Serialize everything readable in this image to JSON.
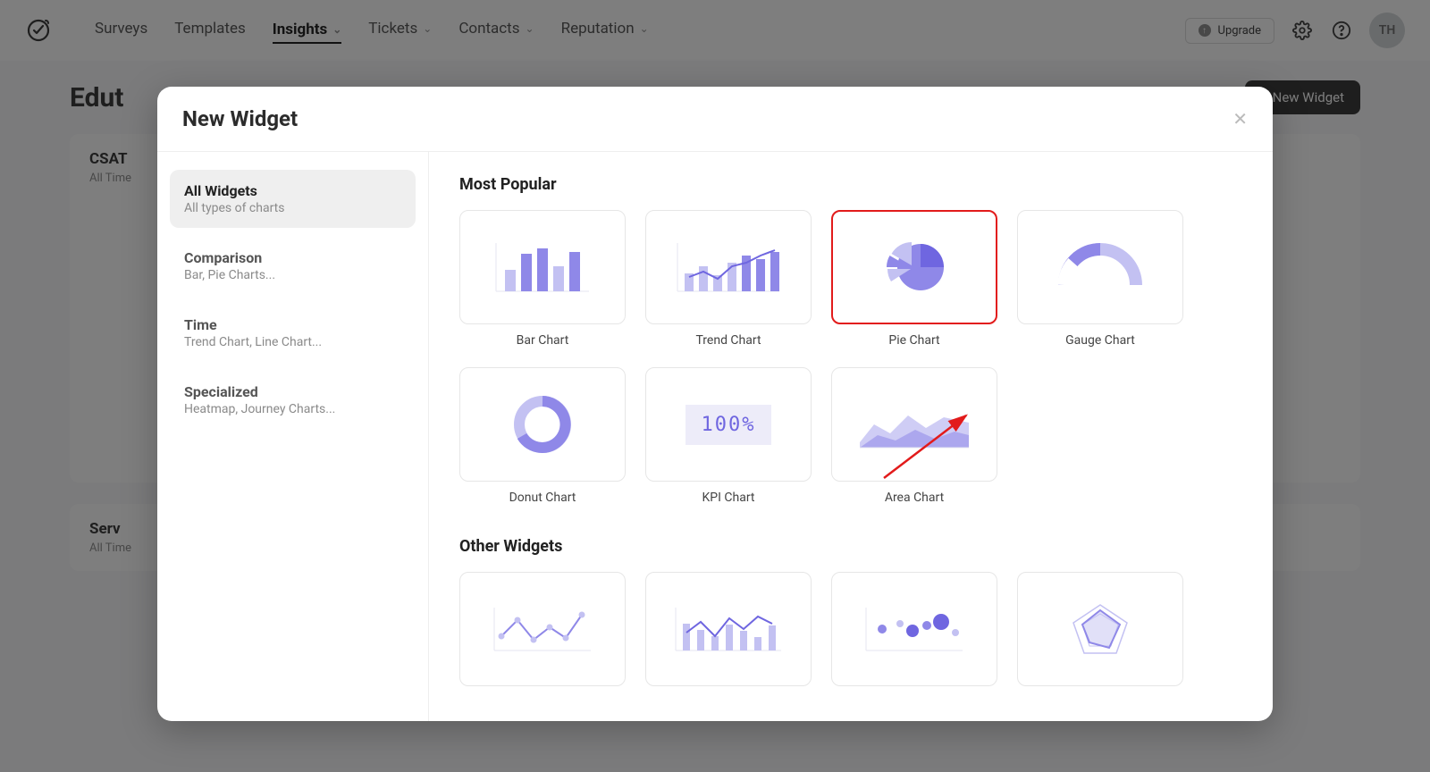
{
  "nav": {
    "items": [
      {
        "label": "Surveys",
        "dropdown": false,
        "active": false
      },
      {
        "label": "Templates",
        "dropdown": false,
        "active": false
      },
      {
        "label": "Insights",
        "dropdown": true,
        "active": true
      },
      {
        "label": "Tickets",
        "dropdown": true,
        "active": false
      },
      {
        "label": "Contacts",
        "dropdown": true,
        "active": false
      },
      {
        "label": "Reputation",
        "dropdown": true,
        "active": false
      }
    ],
    "upgrade_label": "Upgrade",
    "avatar_initials": "TH"
  },
  "page": {
    "title": "Edut",
    "new_widget_btn": "+ New Widget",
    "cards": [
      {
        "title": "CSAT",
        "sub": "All Time"
      },
      {
        "title": "Serv",
        "sub": "All Time"
      }
    ]
  },
  "modal": {
    "title": "New Widget",
    "categories": [
      {
        "title": "All Widgets",
        "sub": "All types of charts",
        "active": true
      },
      {
        "title": "Comparison",
        "sub": "Bar, Pie Charts...",
        "active": false
      },
      {
        "title": "Time",
        "sub": "Trend Chart, Line Chart...",
        "active": false
      },
      {
        "title": "Specialized",
        "sub": "Heatmap, Journey Charts...",
        "active": false
      }
    ],
    "sections": [
      {
        "heading": "Most Popular",
        "tiles": [
          {
            "label": "Bar Chart",
            "icon": "bar",
            "highlight": false
          },
          {
            "label": "Trend Chart",
            "icon": "trend",
            "highlight": false
          },
          {
            "label": "Pie Chart",
            "icon": "pie",
            "highlight": true
          },
          {
            "label": "Gauge Chart",
            "icon": "gauge",
            "highlight": false
          },
          {
            "label": "Donut Chart",
            "icon": "donut",
            "highlight": false
          },
          {
            "label": "KPI Chart",
            "icon": "kpi",
            "highlight": false
          },
          {
            "label": "Area Chart",
            "icon": "area",
            "highlight": false
          }
        ]
      },
      {
        "heading": "Other Widgets",
        "tiles": [
          {
            "label": "",
            "icon": "line",
            "highlight": false
          },
          {
            "label": "",
            "icon": "combo",
            "highlight": false
          },
          {
            "label": "",
            "icon": "bubble",
            "highlight": false
          },
          {
            "label": "",
            "icon": "radar",
            "highlight": false
          }
        ]
      }
    ],
    "kpi_text": "100%"
  },
  "colors": {
    "accent_light": "#c3c1f2",
    "accent": "#8f88e8",
    "accent_dark": "#6f66e0",
    "grid": "#e5e5f2",
    "highlight_border": "#e21b1b",
    "text_muted": "#8a8a8a"
  }
}
